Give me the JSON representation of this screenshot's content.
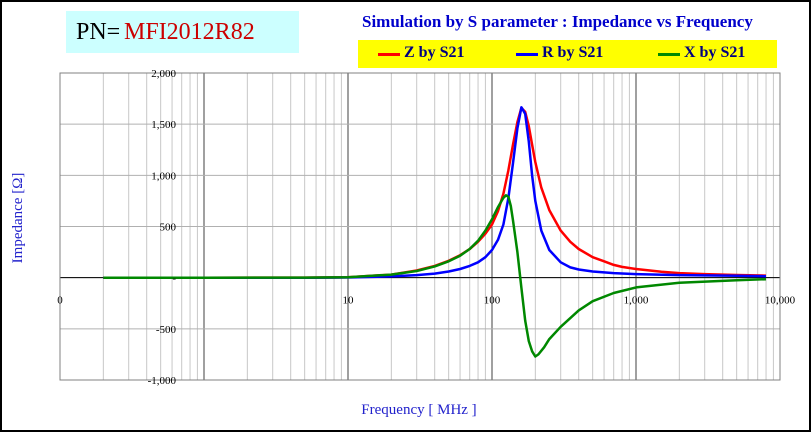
{
  "header": {
    "pn_label": "PN=",
    "pn_value": "MFI2012R82",
    "pn_value_color": "#cc0000",
    "pn_box_color": "#ccffff"
  },
  "chart_data": {
    "type": "line",
    "title": "Simulation by S parameter : Impedance vs Frequency",
    "xlabel": "Frequency [ MHz ]",
    "ylabel": "Impedance [Ω]",
    "x_scale": "log",
    "x_ticks": [
      "0",
      "10",
      "100",
      "1,000",
      "10,000"
    ],
    "y_ticks": [
      "2,000",
      "1,500",
      "1,000",
      "500",
      "-",
      "-500",
      "-1,000"
    ],
    "ylim": [
      -1000,
      2000
    ],
    "grid": true,
    "legend_position": "top-right",
    "legend_background": "#ffff00",
    "series": [
      {
        "name": "Z by S21",
        "color": "#ff0000",
        "points": [
          [
            0.2,
            0
          ],
          [
            1,
            0
          ],
          [
            5,
            1
          ],
          [
            10,
            4
          ],
          [
            20,
            30
          ],
          [
            30,
            70
          ],
          [
            40,
            115
          ],
          [
            50,
            165
          ],
          [
            60,
            220
          ],
          [
            70,
            280
          ],
          [
            80,
            350
          ],
          [
            90,
            430
          ],
          [
            100,
            520
          ],
          [
            110,
            650
          ],
          [
            120,
            820
          ],
          [
            130,
            1050
          ],
          [
            140,
            1300
          ],
          [
            150,
            1520
          ],
          [
            160,
            1660
          ],
          [
            170,
            1620
          ],
          [
            180,
            1480
          ],
          [
            190,
            1300
          ],
          [
            200,
            1130
          ],
          [
            220,
            880
          ],
          [
            250,
            660
          ],
          [
            300,
            460
          ],
          [
            350,
            350
          ],
          [
            400,
            280
          ],
          [
            500,
            200
          ],
          [
            600,
            160
          ],
          [
            700,
            125
          ],
          [
            800,
            105
          ],
          [
            1000,
            85
          ],
          [
            1500,
            58
          ],
          [
            2000,
            45
          ],
          [
            3000,
            35
          ],
          [
            5000,
            26
          ],
          [
            8000,
            20
          ]
        ]
      },
      {
        "name": "R by S21",
        "color": "#0000ff",
        "points": [
          [
            0.2,
            0
          ],
          [
            1,
            0
          ],
          [
            5,
            0
          ],
          [
            10,
            2
          ],
          [
            20,
            12
          ],
          [
            30,
            25
          ],
          [
            40,
            40
          ],
          [
            50,
            60
          ],
          [
            60,
            85
          ],
          [
            70,
            115
          ],
          [
            80,
            150
          ],
          [
            90,
            200
          ],
          [
            100,
            270
          ],
          [
            110,
            370
          ],
          [
            120,
            520
          ],
          [
            130,
            780
          ],
          [
            140,
            1120
          ],
          [
            150,
            1460
          ],
          [
            160,
            1665
          ],
          [
            170,
            1600
          ],
          [
            180,
            1330
          ],
          [
            190,
            1000
          ],
          [
            200,
            750
          ],
          [
            220,
            460
          ],
          [
            250,
            270
          ],
          [
            300,
            150
          ],
          [
            350,
            100
          ],
          [
            400,
            80
          ],
          [
            500,
            60
          ],
          [
            700,
            45
          ],
          [
            1000,
            35
          ],
          [
            2000,
            25
          ],
          [
            5000,
            18
          ],
          [
            8000,
            14
          ]
        ]
      },
      {
        "name": "X by S21",
        "color": "#008800",
        "points": [
          [
            0.2,
            0
          ],
          [
            1,
            0
          ],
          [
            5,
            1
          ],
          [
            10,
            4
          ],
          [
            20,
            30
          ],
          [
            30,
            65
          ],
          [
            40,
            110
          ],
          [
            50,
            160
          ],
          [
            60,
            215
          ],
          [
            70,
            280
          ],
          [
            80,
            360
          ],
          [
            90,
            460
          ],
          [
            100,
            570
          ],
          [
            110,
            690
          ],
          [
            120,
            780
          ],
          [
            125,
            805
          ],
          [
            130,
            790
          ],
          [
            135,
            700
          ],
          [
            140,
            560
          ],
          [
            150,
            250
          ],
          [
            160,
            -100
          ],
          [
            170,
            -420
          ],
          [
            180,
            -620
          ],
          [
            190,
            -720
          ],
          [
            200,
            -770
          ],
          [
            210,
            -750
          ],
          [
            230,
            -680
          ],
          [
            250,
            -600
          ],
          [
            300,
            -480
          ],
          [
            400,
            -320
          ],
          [
            500,
            -230
          ],
          [
            700,
            -150
          ],
          [
            1000,
            -95
          ],
          [
            2000,
            -50
          ],
          [
            5000,
            -25
          ],
          [
            8000,
            -15
          ]
        ]
      }
    ]
  }
}
